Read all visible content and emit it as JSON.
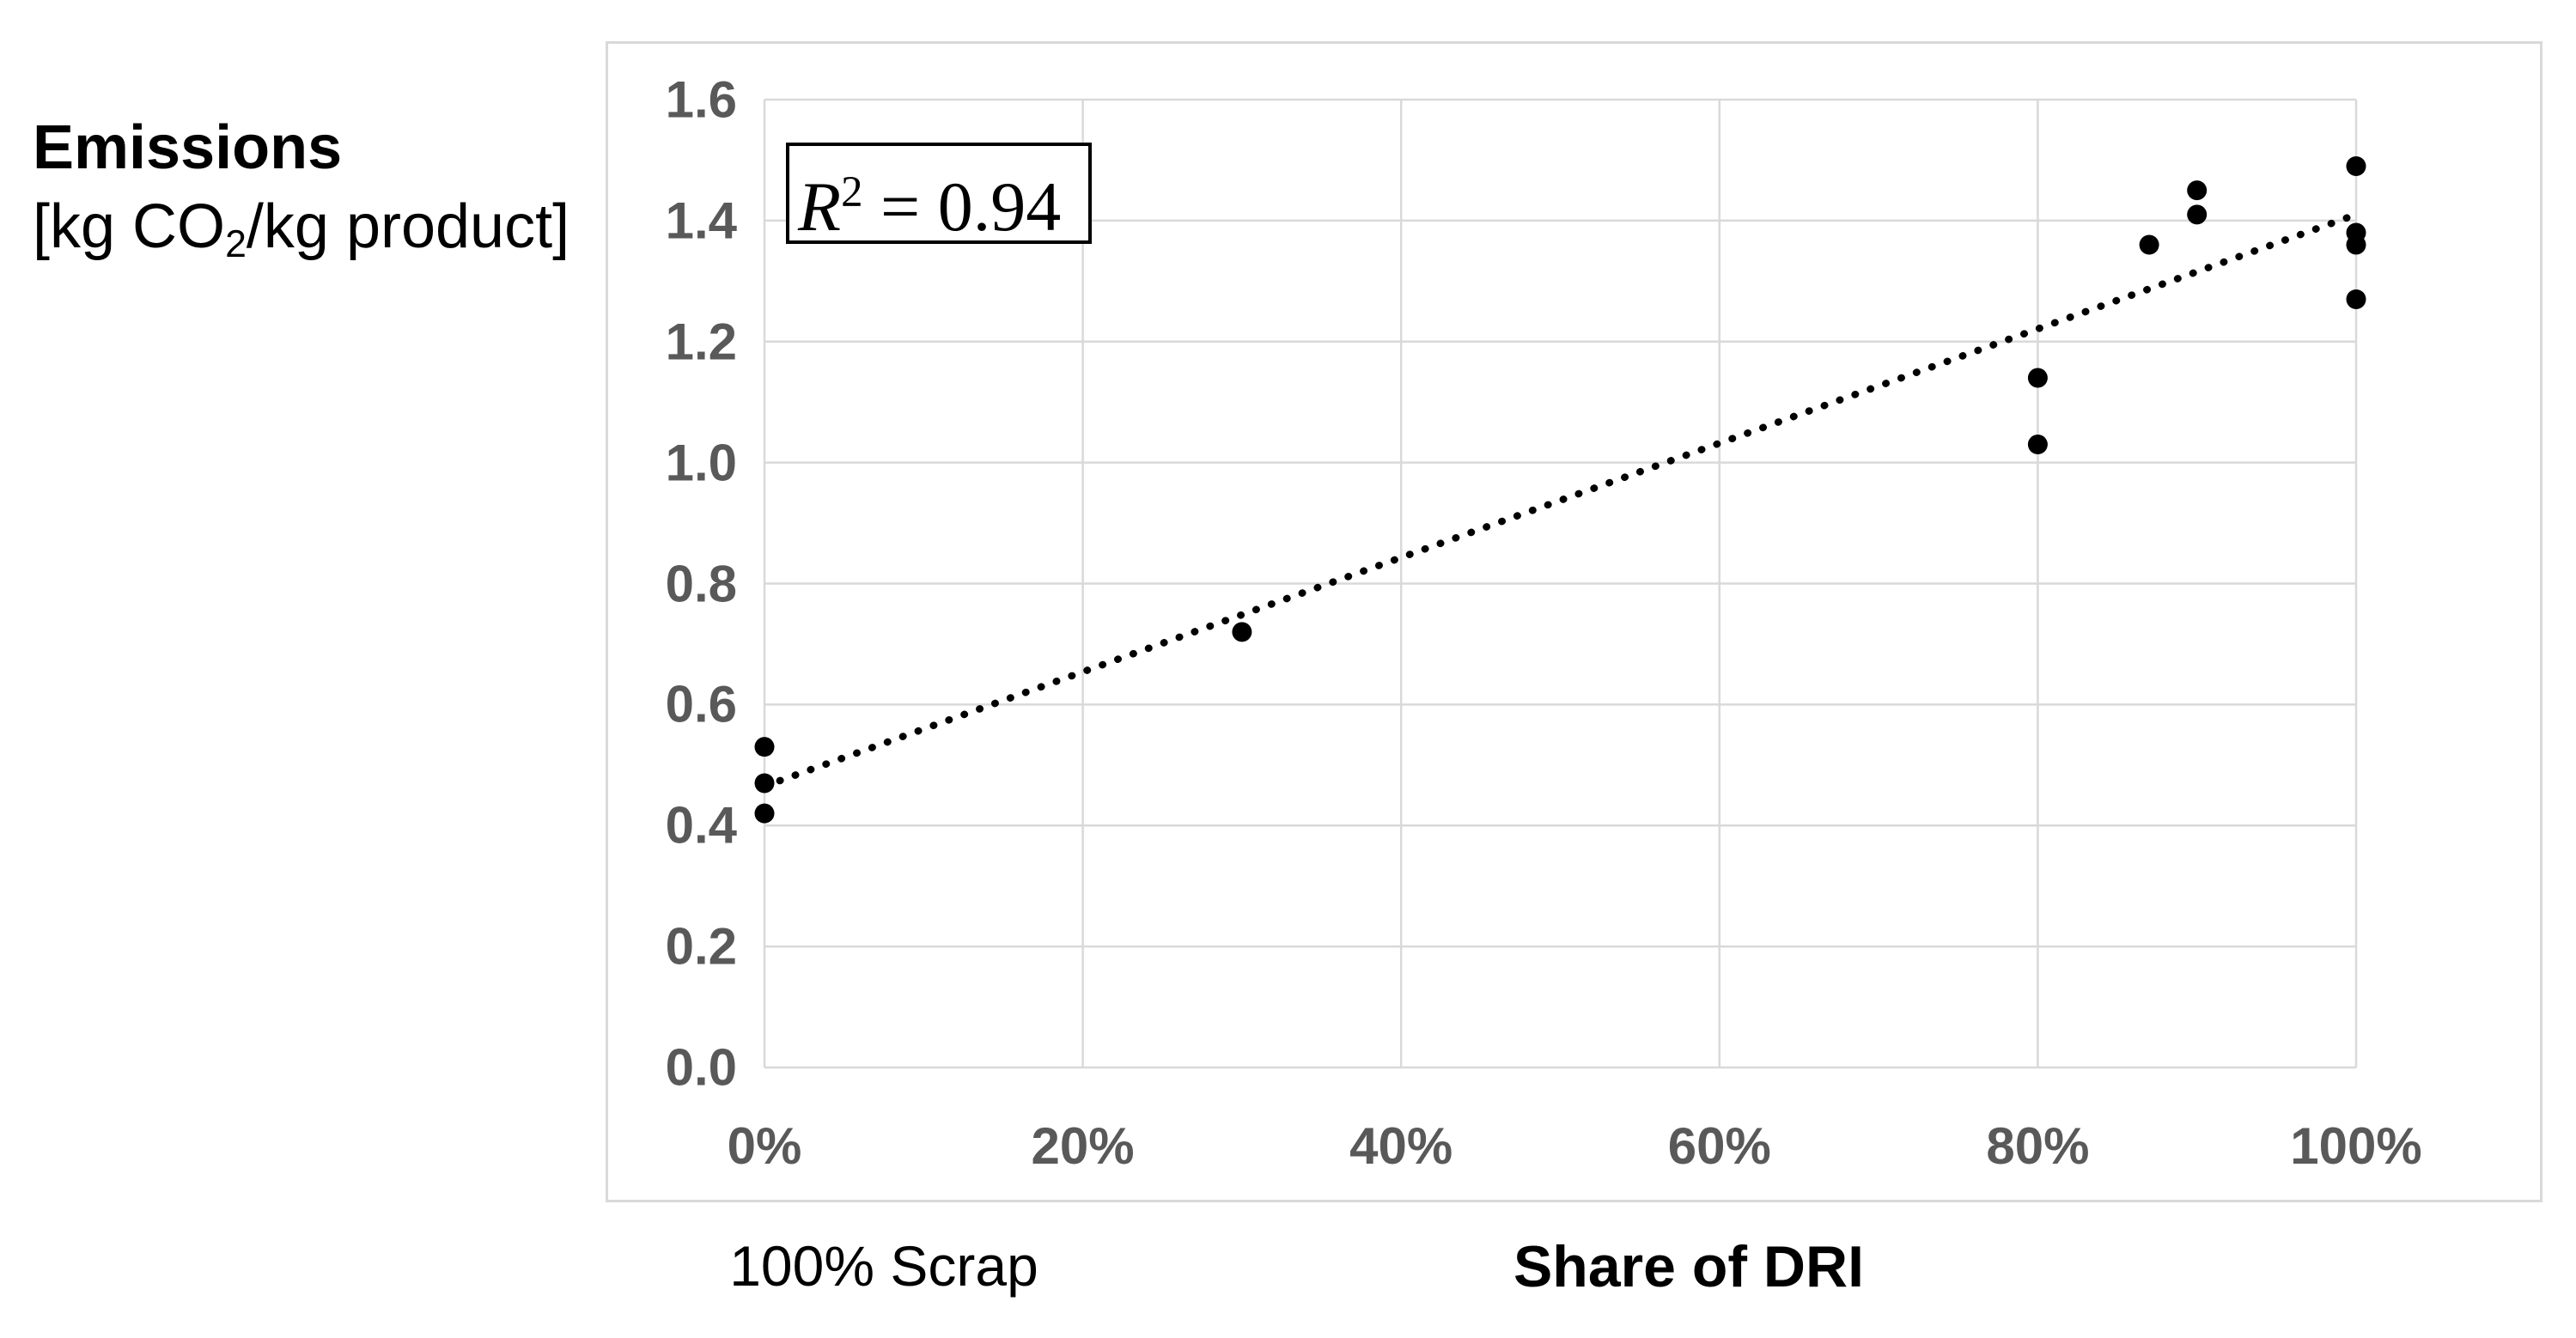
{
  "chart_data": {
    "type": "scatter",
    "y_axis_title": {
      "title": "Emissions",
      "unit_prefix": "[kg CO",
      "unit_sub": "2",
      "unit_suffix": "/kg product]"
    },
    "x_axis_title": "Share of DRI",
    "x_axis_note": "100% Scrap",
    "annotation": {
      "base": "R",
      "exponent": "2",
      "rest": " = 0.94",
      "r_squared": 0.94
    },
    "xlim": [
      0,
      100
    ],
    "ylim": [
      0,
      1.6
    ],
    "grid": true,
    "x_ticks": [
      {
        "label": "0%",
        "value": 0
      },
      {
        "label": "20%",
        "value": 20
      },
      {
        "label": "40%",
        "value": 40
      },
      {
        "label": "60%",
        "value": 60
      },
      {
        "label": "80%",
        "value": 80
      },
      {
        "label": "100%",
        "value": 100
      }
    ],
    "y_ticks": [
      {
        "label": "0.0",
        "value": 0.0
      },
      {
        "label": "0.2",
        "value": 0.2
      },
      {
        "label": "0.4",
        "value": 0.4
      },
      {
        "label": "0.6",
        "value": 0.6
      },
      {
        "label": "0.8",
        "value": 0.8
      },
      {
        "label": "1.0",
        "value": 1.0
      },
      {
        "label": "1.2",
        "value": 1.2
      },
      {
        "label": "1.4",
        "value": 1.4
      },
      {
        "label": "1.6",
        "value": 1.6
      }
    ],
    "points": [
      {
        "x": 0,
        "y": 0.53
      },
      {
        "x": 0,
        "y": 0.47
      },
      {
        "x": 0,
        "y": 0.42
      },
      {
        "x": 30,
        "y": 0.72
      },
      {
        "x": 80,
        "y": 1.14
      },
      {
        "x": 80,
        "y": 1.03
      },
      {
        "x": 87,
        "y": 1.36
      },
      {
        "x": 90,
        "y": 1.45
      },
      {
        "x": 90,
        "y": 1.41
      },
      {
        "x": 100,
        "y": 1.49
      },
      {
        "x": 100,
        "y": 1.38
      },
      {
        "x": 100,
        "y": 1.36
      },
      {
        "x": 100,
        "y": 1.27
      }
    ],
    "trendline": {
      "x1": 0,
      "y1": 0.465,
      "x2": 100,
      "y2": 1.41
    },
    "colors": {
      "point": "#000000",
      "trendline": "#000000",
      "gridline": "#d9d9d9",
      "tick_text": "#595959",
      "text": "#000000",
      "annotation_border": "#000000"
    }
  }
}
